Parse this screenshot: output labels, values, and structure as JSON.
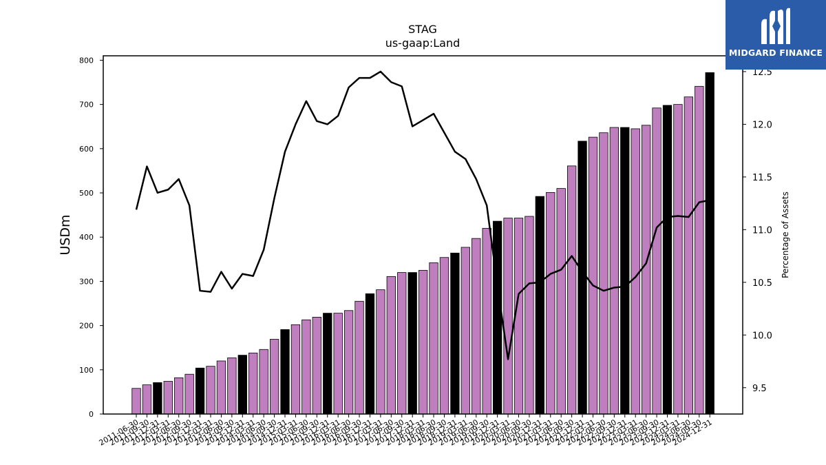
{
  "chart_data": {
    "type": "bar",
    "title": "STAG",
    "subtitle": "us-gaap:Land",
    "ylabel": "USDm",
    "y2label": "Percentage of Assets",
    "ylim": [
      0,
      810
    ],
    "y2lim": [
      9.25,
      12.65
    ],
    "yticks": [
      0,
      100,
      200,
      300,
      400,
      500,
      600,
      700,
      800
    ],
    "y2ticks": [
      9.5,
      10.0,
      10.5,
      11.0,
      11.5,
      12.0,
      12.5
    ],
    "categories": [
      "2011-06-30",
      "2011-09-30",
      "2011-12-31",
      "2012-03-31",
      "2012-06-30",
      "2012-09-30",
      "2012-12-31",
      "2013-03-31",
      "2013-06-30",
      "2013-09-30",
      "2013-12-31",
      "2014-03-31",
      "2014-06-30",
      "2014-09-30",
      "2014-12-31",
      "2015-03-31",
      "2015-06-30",
      "2015-09-30",
      "2015-12-31",
      "2016-03-31",
      "2016-06-30",
      "2016-09-30",
      "2016-12-31",
      "2017-03-31",
      "2017-06-30",
      "2017-09-30",
      "2017-12-31",
      "2018-03-31",
      "2018-06-30",
      "2018-09-30",
      "2018-12-31",
      "2019-03-31",
      "2019-06-30",
      "2019-09-30",
      "2019-12-31",
      "2020-03-31",
      "2020-06-30",
      "2020-09-30",
      "2020-12-31",
      "2021-03-31",
      "2021-06-30",
      "2021-09-30",
      "2021-12-31",
      "2022-03-31",
      "2022-06-30",
      "2022-09-30",
      "2022-12-31",
      "2023-03-31",
      "2023-06-30",
      "2023-09-30",
      "2023-12-31",
      "2024-03-31",
      "2024-06-30",
      "2024-09-30",
      "2024-12-31"
    ],
    "series": [
      {
        "type": "bar",
        "axis": "left",
        "values": [
          58,
          66,
          71,
          74,
          82,
          90,
          104,
          108,
          120,
          127,
          133,
          138,
          146,
          169,
          191,
          202,
          213,
          219,
          228,
          228,
          234,
          255,
          272,
          281,
          311,
          320,
          320,
          325,
          342,
          354,
          364,
          377,
          397,
          420,
          436,
          443,
          443,
          447,
          492,
          501,
          510,
          561,
          617,
          626,
          636,
          648,
          648,
          645,
          653,
          692,
          698,
          700,
          717,
          741,
          772
        ],
        "highlight_color": "#000000",
        "base_color": "#bf7fbf"
      },
      {
        "type": "line",
        "axis": "right",
        "values": [
          11.19,
          11.6,
          11.35,
          11.38,
          11.48,
          11.23,
          10.42,
          10.41,
          10.6,
          10.44,
          10.58,
          10.56,
          10.81,
          11.3,
          11.74,
          12.0,
          12.22,
          12.03,
          12.0,
          12.08,
          12.35,
          12.44,
          12.44,
          12.5,
          12.4,
          12.36,
          11.98,
          12.04,
          12.1,
          11.92,
          11.74,
          11.67,
          11.48,
          11.23,
          10.47,
          9.77,
          10.39,
          10.49,
          10.5,
          10.58,
          10.62,
          10.75,
          10.6,
          10.47,
          10.42,
          10.45,
          10.46,
          10.55,
          10.68,
          11.02,
          11.12,
          11.13,
          11.12,
          11.26,
          11.28
        ],
        "color": "#000000"
      }
    ],
    "grid": false,
    "legend": "none"
  },
  "logo": {
    "text": "MIDGARD FINANCE",
    "color": "#2a5caa"
  }
}
